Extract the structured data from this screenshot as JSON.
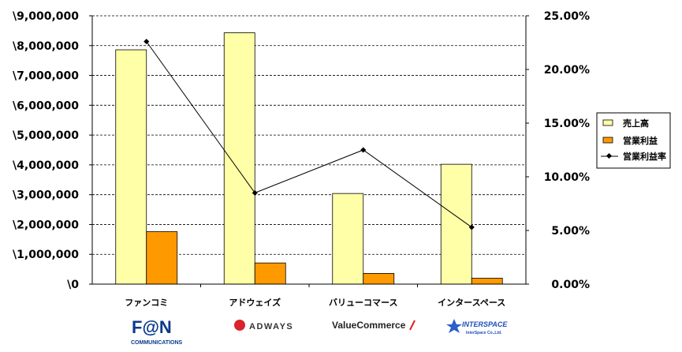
{
  "chart_data": {
    "type": "bar",
    "categories": [
      "ファンコミ",
      "アドウェイズ",
      "バリューコマース",
      "インタースペース"
    ],
    "series": [
      {
        "name": "売上高",
        "kind": "bar",
        "axis": "left",
        "color": "#FFFFA8",
        "values": [
          7860000,
          8430000,
          3040000,
          4020000
        ]
      },
      {
        "name": "営業利益",
        "kind": "bar",
        "axis": "left",
        "color": "#FF9900",
        "values": [
          1760000,
          710000,
          360000,
          200000
        ]
      },
      {
        "name": "営業利益率",
        "kind": "line",
        "axis": "right",
        "color": "#000000",
        "values": [
          22.6,
          8.5,
          12.5,
          5.3
        ]
      }
    ],
    "y_left": {
      "min": 0,
      "max": 9000000,
      "step": 1000000,
      "ticks": [
        "\\0",
        "\\1,000,000",
        "\\2,000,000",
        "\\3,000,000",
        "\\4,000,000",
        "\\5,000,000",
        "\\6,000,000",
        "\\7,000,000",
        "\\8,000,000",
        "\\9,000,000"
      ]
    },
    "y_right": {
      "min": 0,
      "max": 25,
      "step": 5,
      "ticks": [
        "0.00%",
        "5.00%",
        "10.00%",
        "15.00%",
        "20.00%",
        "25.00%"
      ]
    },
    "grid": "horizontal dashed",
    "legend_position": "right"
  },
  "logos": {
    "fan": {
      "main": "F@N",
      "sub": "COMMUNICATIONS"
    },
    "adways": {
      "main": "ADWAYS"
    },
    "valuecommerce": {
      "main": "ValueCommerce"
    },
    "interspace": {
      "main": "INTERSPACE",
      "sub": "InterSpace Co.,Ltd."
    }
  }
}
